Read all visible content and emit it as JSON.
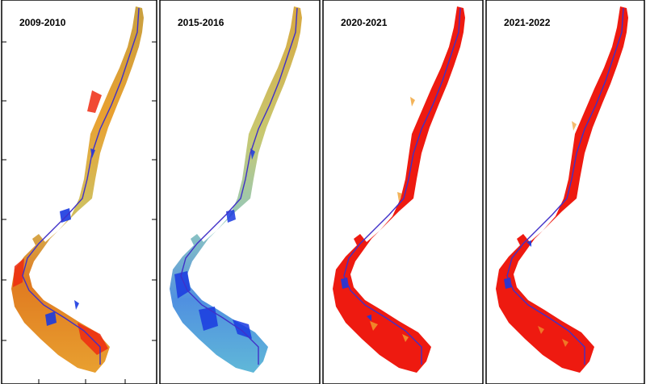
{
  "panels": [
    {
      "label": "2009-2010",
      "palette": "mixed"
    },
    {
      "label": "2015-2016",
      "palette": "blue"
    },
    {
      "label": "2020-2021",
      "palette": "red"
    },
    {
      "label": "2021-2022",
      "palette": "red"
    }
  ],
  "colors": {
    "frame": "#000000",
    "river": "#4030c8",
    "red": "#ee1a10",
    "orange": "#ee8a20",
    "yellow": "#f0d040",
    "light_blue": "#80d0e0",
    "blue": "#1a3ae0"
  }
}
